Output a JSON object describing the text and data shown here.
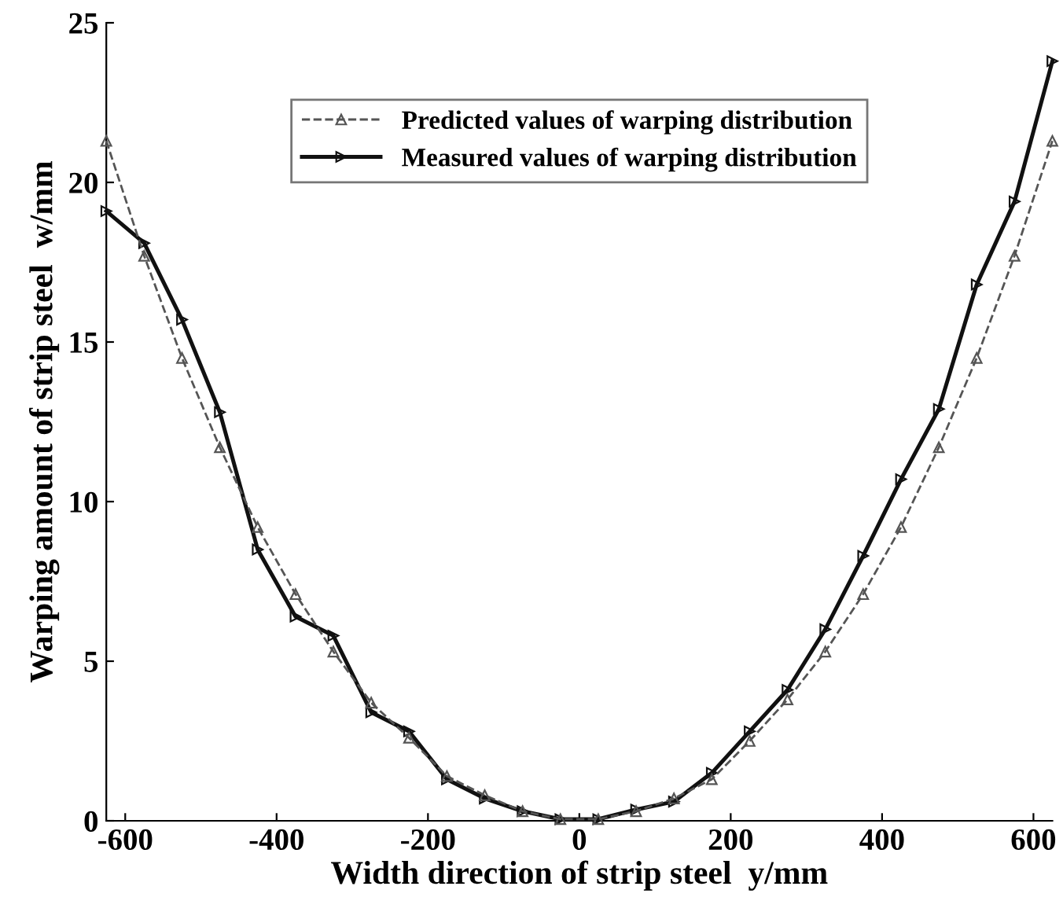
{
  "chart_data": {
    "type": "line",
    "xlabel": "Width direction of strip steel  y/mm",
    "ylabel": "Warping amount of strip steel  w/mm",
    "x": [
      -625,
      -575,
      -525,
      -475,
      -425,
      -375,
      -325,
      -275,
      -225,
      -175,
      -125,
      -75,
      -25,
      25,
      75,
      125,
      175,
      225,
      275,
      325,
      375,
      425,
      475,
      525,
      575,
      625
    ],
    "series": [
      {
        "name": "Predicted values of warping distribution",
        "color": "#555555",
        "line_style": "dashed",
        "marker": "triangle",
        "values": [
          21.3,
          17.7,
          14.5,
          11.7,
          9.2,
          7.1,
          5.3,
          3.7,
          2.6,
          1.4,
          0.8,
          0.3,
          0.05,
          0.05,
          0.3,
          0.7,
          1.3,
          2.5,
          3.8,
          5.3,
          7.1,
          9.2,
          11.7,
          14.5,
          17.7,
          21.3
        ]
      },
      {
        "name": "Measured values of warping distribution",
        "color": "#111111",
        "line_style": "solid",
        "marker": "triangle_right",
        "values": [
          19.1,
          18.1,
          15.7,
          12.8,
          8.5,
          6.4,
          5.8,
          3.4,
          2.8,
          1.3,
          0.7,
          0.3,
          0.05,
          0.05,
          0.35,
          0.6,
          1.5,
          2.8,
          4.1,
          6.0,
          8.3,
          10.7,
          12.9,
          16.8,
          19.4,
          23.8
        ]
      }
    ],
    "xlim": [
      -625,
      625
    ],
    "ylim": [
      0,
      25
    ],
    "xticks": [
      -600,
      -400,
      -200,
      0,
      200,
      400,
      600
    ],
    "yticks": [
      0,
      5,
      10,
      15,
      20,
      25
    ],
    "grid": false,
    "legend": "top"
  }
}
